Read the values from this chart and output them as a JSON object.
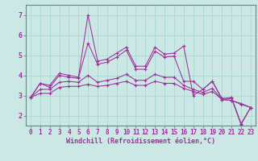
{
  "xlabel": "Windchill (Refroidissement éolien,°C)",
  "background_color": "#cce8e4",
  "line_color": "#993399",
  "grid_color": "#aad8d4",
  "spine_color": "#668888",
  "xlim": [
    -0.5,
    23.5
  ],
  "ylim": [
    1.5,
    7.5
  ],
  "yticks": [
    2,
    3,
    4,
    5,
    6,
    7
  ],
  "xticks": [
    0,
    1,
    2,
    3,
    4,
    5,
    6,
    7,
    8,
    9,
    10,
    11,
    12,
    13,
    14,
    15,
    16,
    17,
    18,
    19,
    20,
    21,
    22,
    23
  ],
  "xtick_labels": [
    "0",
    "1",
    "2",
    "3",
    "4",
    "5",
    "6",
    "7",
    "8",
    "9",
    "10",
    "11",
    "12",
    "13",
    "14",
    "15",
    "16",
    "17",
    "18",
    "19",
    "20",
    "21",
    "22",
    "23"
  ],
  "series": [
    [
      2.9,
      3.6,
      3.5,
      4.1,
      4.0,
      3.9,
      7.0,
      4.7,
      4.8,
      5.1,
      5.4,
      4.45,
      4.45,
      5.4,
      5.05,
      5.1,
      5.45,
      3.0,
      3.3,
      3.7,
      2.85,
      2.9,
      1.6,
      2.4
    ],
    [
      2.9,
      3.6,
      3.4,
      4.0,
      3.9,
      3.85,
      5.6,
      4.55,
      4.65,
      4.9,
      5.25,
      4.3,
      4.3,
      5.2,
      4.9,
      4.95,
      3.7,
      3.7,
      3.3,
      3.7,
      2.8,
      2.85,
      1.55,
      2.4
    ],
    [
      2.9,
      3.3,
      3.3,
      3.65,
      3.7,
      3.65,
      4.0,
      3.65,
      3.75,
      3.85,
      4.05,
      3.75,
      3.75,
      4.05,
      3.9,
      3.9,
      3.5,
      3.3,
      3.15,
      3.35,
      2.8,
      2.75,
      2.6,
      2.4
    ],
    [
      2.9,
      3.1,
      3.1,
      3.4,
      3.45,
      3.45,
      3.55,
      3.45,
      3.5,
      3.6,
      3.7,
      3.5,
      3.5,
      3.7,
      3.6,
      3.6,
      3.35,
      3.2,
      3.05,
      3.2,
      2.8,
      2.75,
      2.55,
      2.4
    ]
  ],
  "tick_fontsize": 5.5,
  "xlabel_fontsize": 6.0,
  "marker": "+",
  "markersize": 3.5,
  "linewidth": 0.75
}
